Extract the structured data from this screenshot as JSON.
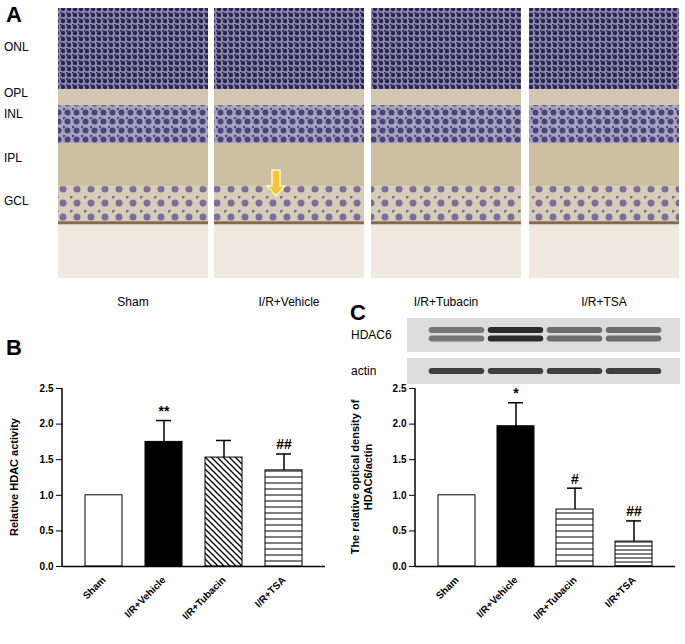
{
  "figure": {
    "panel_labels": [
      "A",
      "B",
      "C"
    ],
    "panel_a": {
      "layers": [
        "ONL",
        "OPL",
        "INL",
        "IPL",
        "GCL"
      ],
      "groups": [
        "Sham",
        "I/R+Vehicle",
        "I/R+Tubacin",
        "I/R+TSA"
      ]
    },
    "panel_c_blot": {
      "rows": [
        "HDAC6",
        "actin"
      ]
    }
  },
  "chart_data": [
    {
      "type": "bar",
      "y_label": "Relative HDAC activity",
      "categories": [
        "Sham",
        "I/R+Vehicle",
        "I/R+Tubacin",
        "I/R+TSA"
      ],
      "values": [
        1.0,
        1.75,
        1.53,
        1.35
      ],
      "errors": [
        null,
        0.3,
        0.24,
        0.23
      ],
      "annotations": [
        null,
        "**",
        null,
        "##"
      ],
      "colors": [
        "#ffffff",
        "#000000",
        "#ffffff",
        "#ffffff"
      ],
      "ylim": [
        0,
        2.5
      ],
      "yticks": [
        {
          "value": 0,
          "label": "0.0"
        },
        {
          "value": 0.5,
          "label": "0.5"
        },
        {
          "value": 1,
          "label": "1.0"
        },
        {
          "value": 1.5,
          "label": "1.5"
        },
        {
          "value": 2,
          "label": "2.0"
        },
        {
          "value": 2.5,
          "label": "2.5"
        }
      ]
    },
    {
      "type": "bar",
      "y_label": "The relative optical density of\nHDAC6/actin",
      "categories": [
        "Sham",
        "I/R+Vehicle",
        "I/R+Tubacin",
        "I/R+TSA"
      ],
      "values": [
        1.0,
        1.97,
        0.8,
        0.35
      ],
      "errors": [
        null,
        0.33,
        0.3,
        0.29
      ],
      "annotations": [
        null,
        "*",
        "#",
        "##"
      ],
      "colors": [
        "#ffffff",
        "#000000",
        "#ffffff",
        "#ffffff"
      ],
      "ylim": [
        0,
        2.5
      ],
      "yticks": [
        {
          "value": 0,
          "label": "0.0"
        },
        {
          "value": 0.5,
          "label": "0.5"
        },
        {
          "value": 1,
          "label": "1.0"
        },
        {
          "value": 1.5,
          "label": "1.5"
        },
        {
          "value": 2,
          "label": "2.0"
        },
        {
          "value": 2.5,
          "label": "2.5"
        }
      ]
    }
  ]
}
